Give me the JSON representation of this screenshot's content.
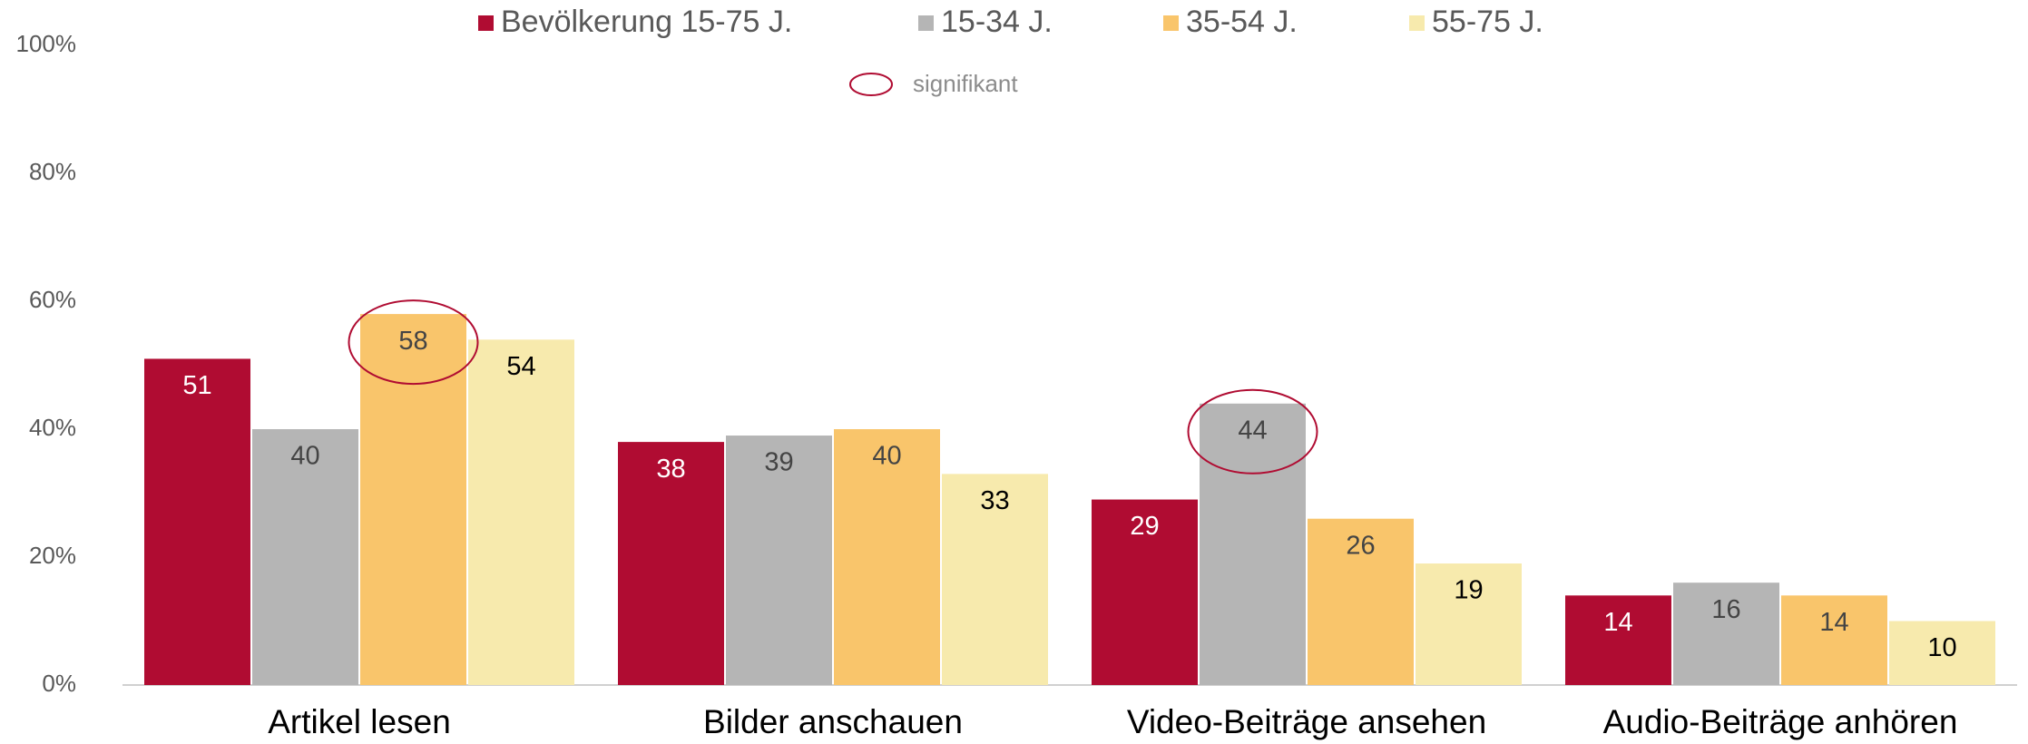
{
  "chart_data": {
    "type": "bar",
    "categories": [
      "Artikel lesen",
      "Bilder anschauen",
      "Video-Beiträge ansehen",
      "Audio-Beiträge anhören"
    ],
    "series": [
      {
        "name": "Bevölkerung 15-75 J.",
        "color": "#b00c32",
        "label_color": "#ffffff",
        "values": [
          51,
          38,
          29,
          14
        ]
      },
      {
        "name": "15-34 J.",
        "color": "#b5b5b5",
        "label_color": "#444444",
        "values": [
          40,
          39,
          44,
          16
        ]
      },
      {
        "name": "35-54 J.",
        "color": "#f9c56b",
        "label_color": "#444444",
        "values": [
          58,
          40,
          26,
          14
        ]
      },
      {
        "name": "55-75 J.",
        "color": "#f7eaad",
        "label_color": "#000000",
        "values": [
          54,
          33,
          19,
          10
        ]
      }
    ],
    "ylim": [
      0,
      100
    ],
    "yticks": [
      {
        "value": 0,
        "label": "0%"
      },
      {
        "value": 20,
        "label": "20%"
      },
      {
        "value": 40,
        "label": "40%"
      },
      {
        "value": 60,
        "label": "60%"
      },
      {
        "value": 80,
        "label": "80%"
      },
      {
        "value": 100,
        "label": "100%"
      }
    ],
    "grid": false,
    "highlight_label": "signifikant",
    "highlight_color": "#b00c32",
    "highlights": [
      {
        "series": 2,
        "category": 0
      },
      {
        "series": 1,
        "category": 2
      }
    ]
  }
}
